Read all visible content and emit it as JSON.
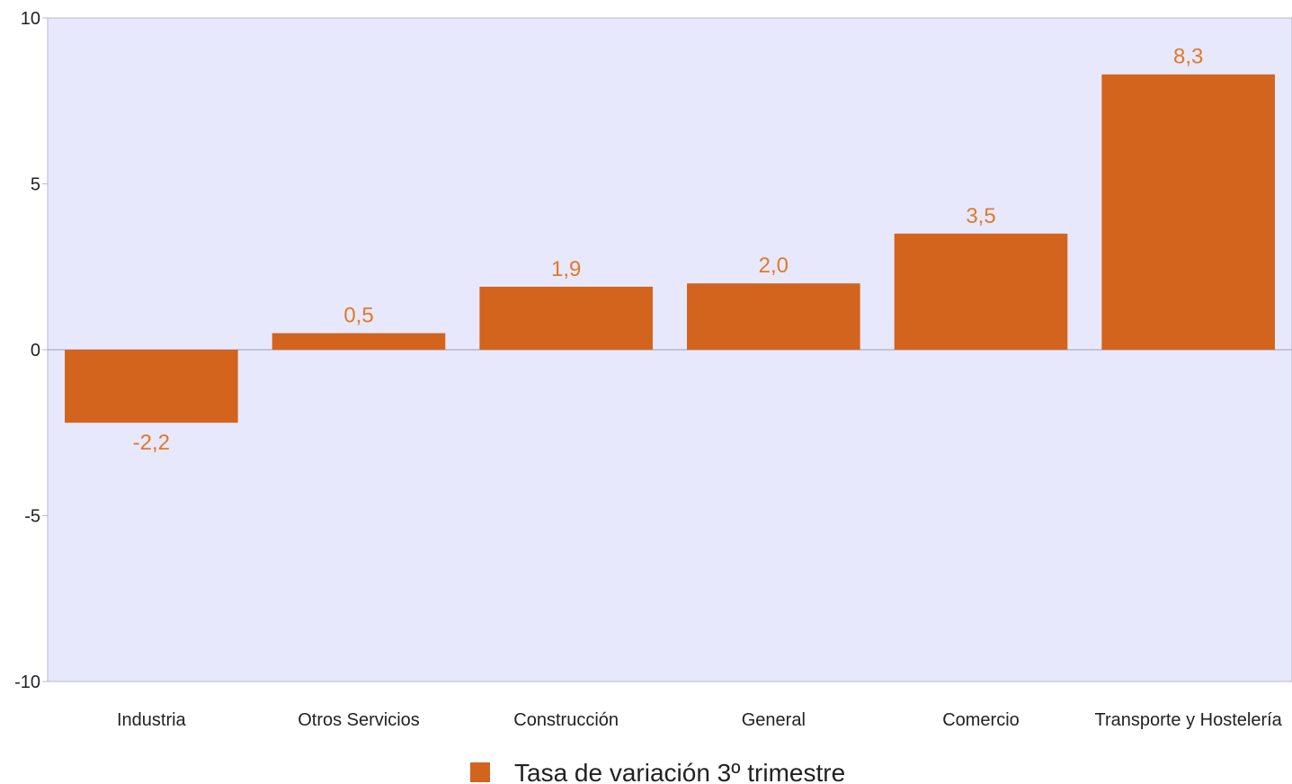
{
  "chart_data": {
    "type": "bar",
    "categories": [
      "Industria",
      "Otros Servicios",
      "Construcción",
      "General",
      "Comercio",
      "Transporte y Hostelería"
    ],
    "series": [
      {
        "name": "Tasa de variación 3º trimestre",
        "values": [
          -2.2,
          0.5,
          1.9,
          2.0,
          3.5,
          8.3
        ],
        "labels": [
          "-2,2",
          "0,5",
          "1,9",
          "2,0",
          "3,5",
          "8,3"
        ]
      }
    ],
    "title": "",
    "xlabel": "",
    "ylabel": "",
    "ylim": [
      -10,
      10
    ],
    "yticks": [
      10,
      5,
      0,
      -5,
      -10
    ],
    "ytick_labels": [
      "10",
      "5",
      "0",
      "-5",
      "-10"
    ],
    "grid": false,
    "legend_position": "bottom",
    "colors": {
      "bar": "#d2641e",
      "data_label": "#e07a26",
      "plot_background": "#e8e8fc",
      "axis": "#b8b8c8"
    }
  }
}
